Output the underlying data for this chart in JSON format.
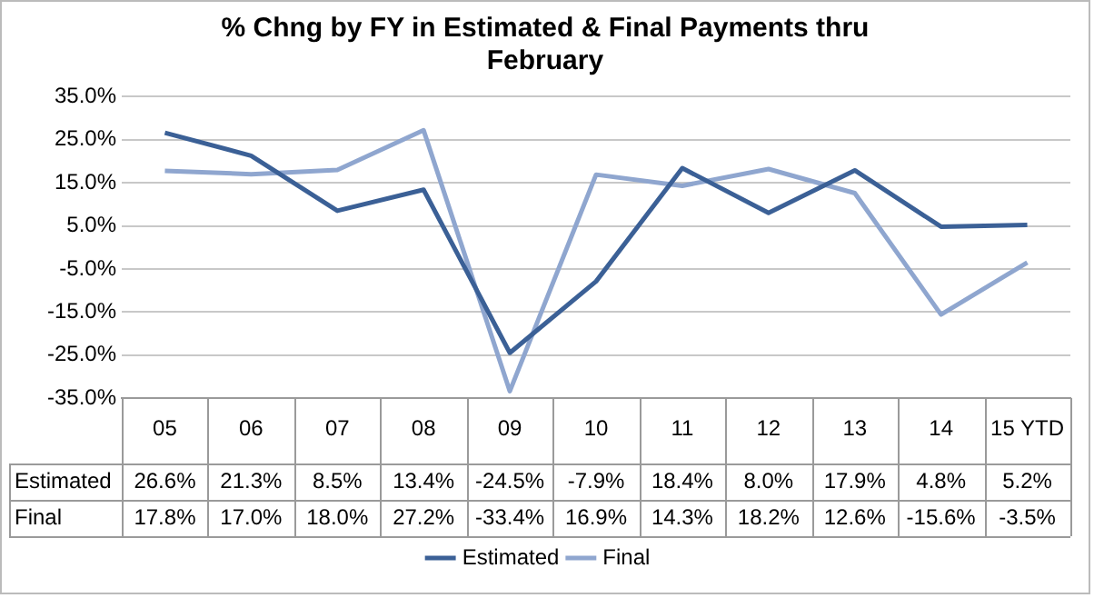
{
  "chart_data": {
    "type": "line",
    "title": "% Chng by FY in Estimated & Final Payments thru February",
    "categories": [
      "05",
      "06",
      "07",
      "08",
      "09",
      "10",
      "11",
      "12",
      "13",
      "14",
      "15 YTD"
    ],
    "series": [
      {
        "name": "Estimated",
        "color": "#3b6096",
        "values": [
          26.6,
          21.3,
          8.5,
          13.4,
          -24.5,
          -7.9,
          18.4,
          8.0,
          17.9,
          4.8,
          5.2
        ],
        "value_labels": [
          "26.6%",
          "21.3%",
          "8.5%",
          "13.4%",
          "-24.5%",
          "-7.9%",
          "18.4%",
          "8.0%",
          "17.9%",
          "4.8%",
          "5.2%"
        ]
      },
      {
        "name": "Final",
        "color": "#8fa6cf",
        "values": [
          17.8,
          17.0,
          18.0,
          27.2,
          -33.4,
          16.9,
          14.3,
          18.2,
          12.6,
          -15.6,
          -3.5
        ],
        "value_labels": [
          "17.8%",
          "17.0%",
          "18.0%",
          "27.2%",
          "-33.4%",
          "16.9%",
          "14.3%",
          "18.2%",
          "12.6%",
          "-15.6%",
          "-3.5%"
        ]
      }
    ],
    "ylim": [
      -35,
      35
    ],
    "yticks": [
      {
        "value": -35,
        "label": "-35.0%"
      },
      {
        "value": -25,
        "label": "-25.0%"
      },
      {
        "value": -15,
        "label": "-15.0%"
      },
      {
        "value": -5,
        "label": "-5.0%"
      },
      {
        "value": 5,
        "label": "5.0%"
      },
      {
        "value": 15,
        "label": "15.0%"
      },
      {
        "value": 25,
        "label": "25.0%"
      },
      {
        "value": 35,
        "label": "35.0%"
      }
    ],
    "grid": "y",
    "legend": "bottom",
    "marker": "none"
  }
}
